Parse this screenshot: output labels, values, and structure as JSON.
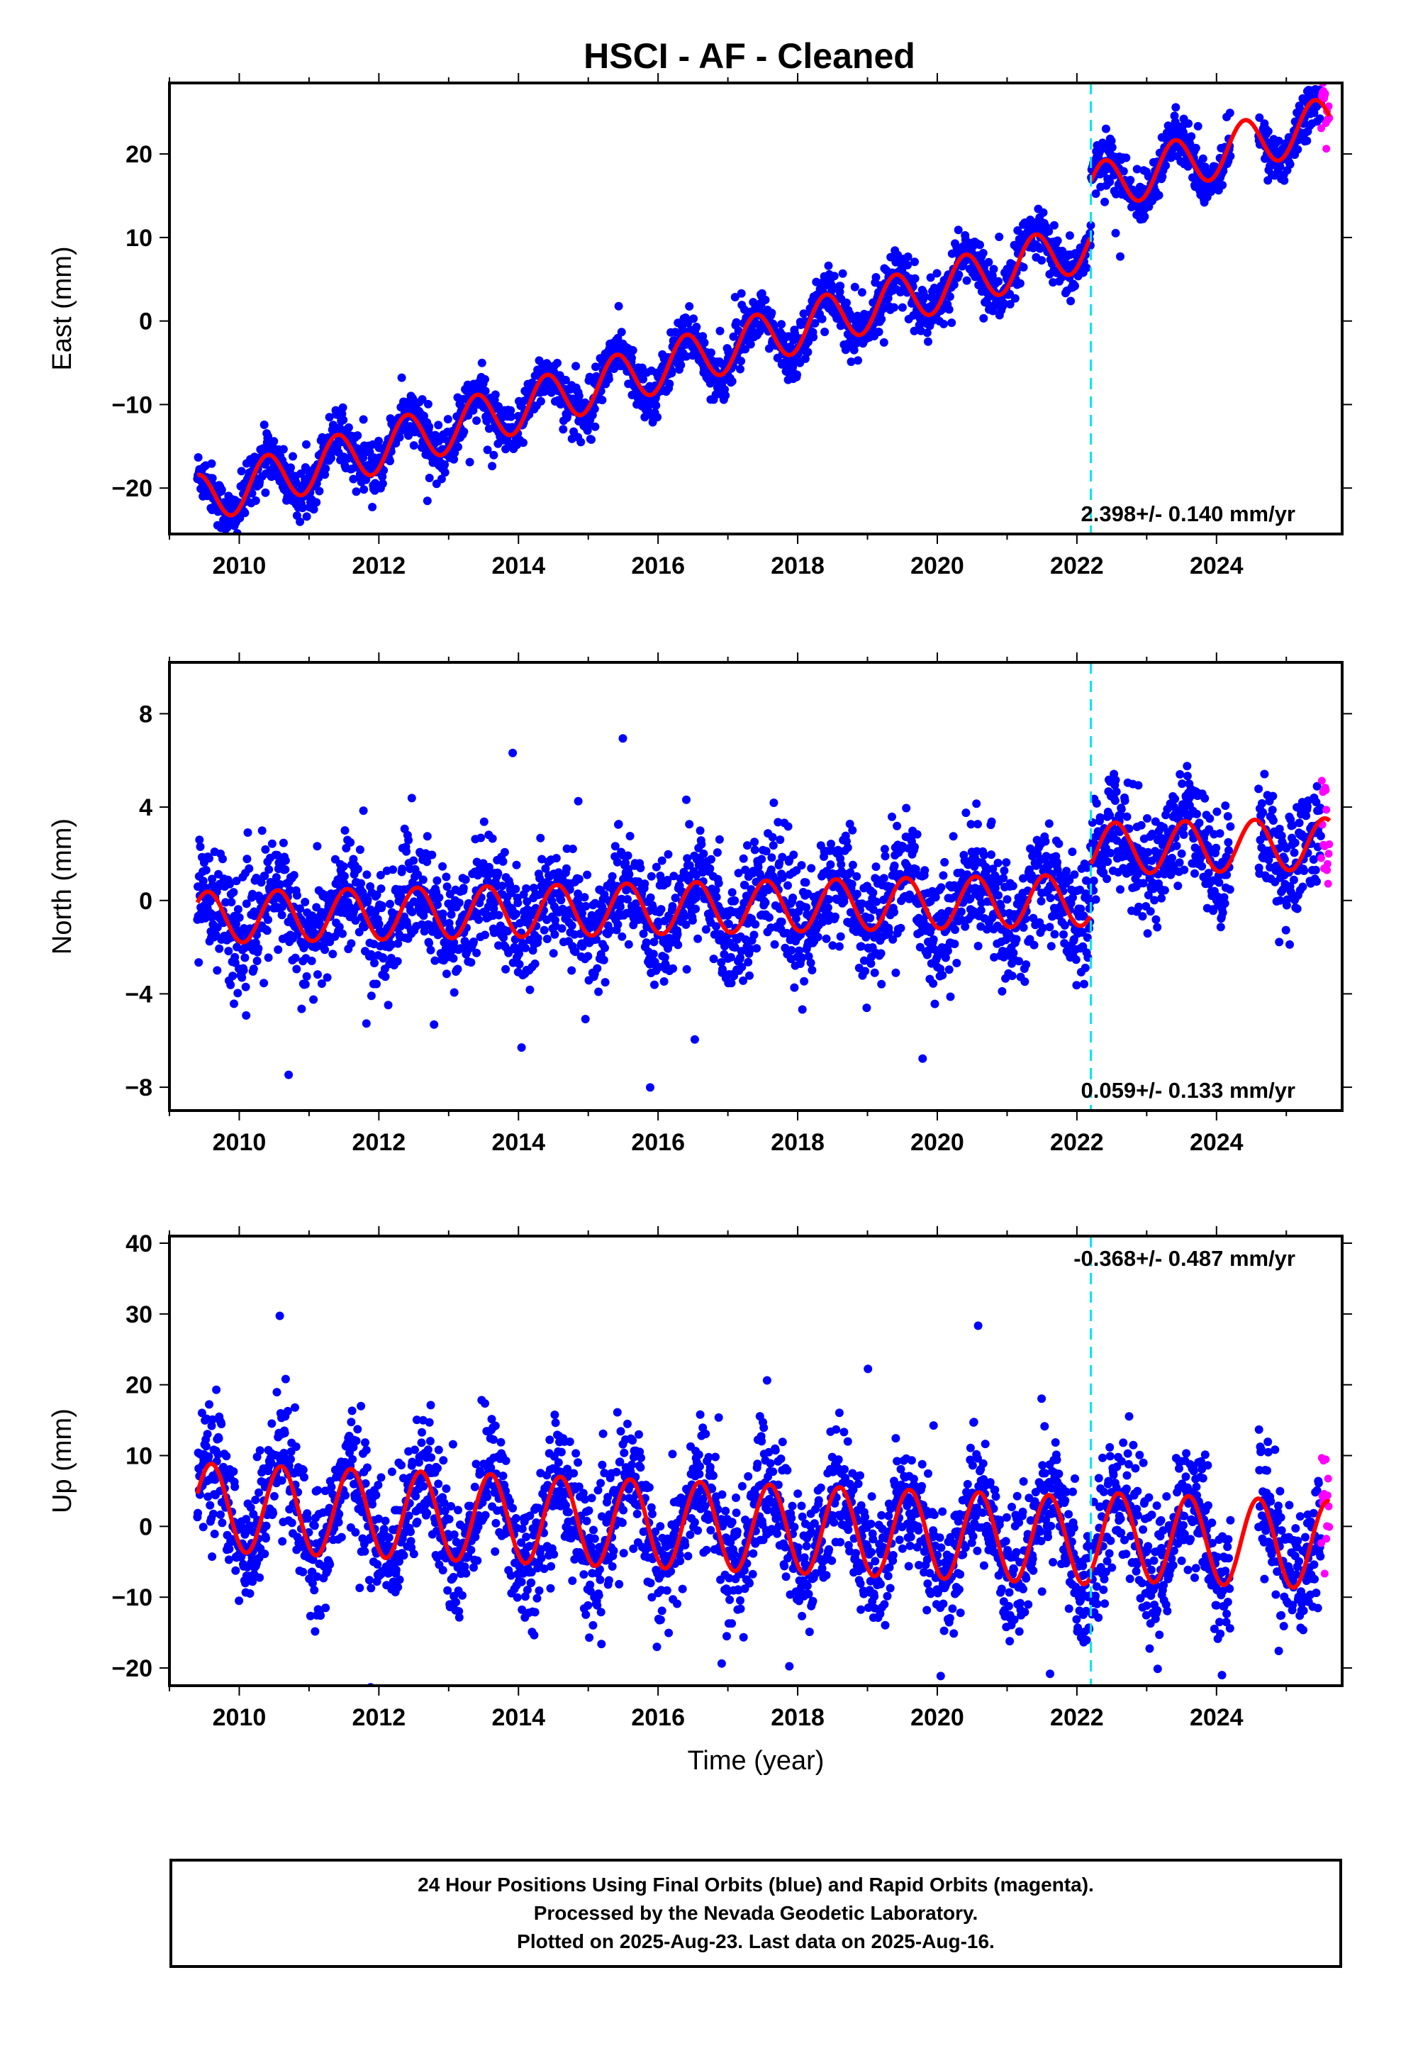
{
  "title": "HSCI  - AF - Cleaned",
  "chart_data": [
    {
      "type": "scatter",
      "panel": "east",
      "ylabel": "East (mm)",
      "xlabel": "",
      "xlim": [
        2009.0,
        2025.8
      ],
      "ylim": [
        -25.5,
        28.5
      ],
      "yticks": [
        -20,
        -10,
        0,
        10,
        20
      ],
      "xticks": [
        2010,
        2012,
        2014,
        2016,
        2018,
        2020,
        2022,
        2024
      ],
      "x_tick_labels": [
        "2010",
        "2012",
        "2014",
        "2016",
        "2018",
        "2020",
        "2022",
        "2024"
      ],
      "rate_label": "2.398+/- 0.140 mm/yr",
      "rate_label_position": "bottom-right",
      "equipment_change_year": 2022.2,
      "data_start": 2009.4,
      "data_end": 2025.62,
      "rapid_start": 2025.5,
      "series": [
        {
          "name": "Final Orbits",
          "color": "#0000ff",
          "trend_at_2010": -20.0,
          "rate": 2.398,
          "annual_amplitude": 3.0,
          "phase_peak_fraction": 0.4,
          "noise_sd": 1.5,
          "offset_after_break": 6.5
        },
        {
          "name": "Rapid Orbits",
          "color": "#ff00ff"
        },
        {
          "name": "Model",
          "color": "#ff0000"
        }
      ],
      "gaps": [
        [
          2024.2,
          2024.6
        ]
      ]
    },
    {
      "type": "scatter",
      "panel": "north",
      "ylabel": "North (mm)",
      "xlabel": "",
      "xlim": [
        2009.0,
        2025.8
      ],
      "ylim": [
        -9.0,
        10.2
      ],
      "yticks": [
        -8,
        -4,
        0,
        4,
        8
      ],
      "xticks": [
        2010,
        2012,
        2014,
        2016,
        2018,
        2020,
        2022,
        2024
      ],
      "x_tick_labels": [
        "2010",
        "2012",
        "2014",
        "2016",
        "2018",
        "2020",
        "2022",
        "2024"
      ],
      "rate_label": "0.059+/- 0.133 mm/yr",
      "rate_label_position": "bottom-right",
      "equipment_change_year": 2022.2,
      "data_start": 2009.4,
      "data_end": 2025.62,
      "rapid_start": 2025.5,
      "series": [
        {
          "name": "Final Orbits",
          "color": "#0000ff",
          "trend_at_2010": -0.7,
          "rate": 0.059,
          "annual_amplitude": 1.1,
          "phase_peak_fraction": 0.55,
          "noise_sd": 1.2,
          "offset_after_break": 2.2
        },
        {
          "name": "Rapid Orbits",
          "color": "#ff00ff"
        },
        {
          "name": "Model",
          "color": "#ff0000"
        }
      ],
      "gaps": [
        [
          2024.2,
          2024.6
        ]
      ]
    },
    {
      "type": "scatter",
      "panel": "up",
      "ylabel": "Up (mm)",
      "xlabel": "Time (year)",
      "xlim": [
        2009.0,
        2025.8
      ],
      "ylim": [
        -22.5,
        41.0
      ],
      "yticks": [
        -20,
        -10,
        0,
        10,
        20,
        30,
        40
      ],
      "xticks": [
        2010,
        2012,
        2014,
        2016,
        2018,
        2020,
        2022,
        2024
      ],
      "x_tick_labels": [
        "2010",
        "2012",
        "2014",
        "2016",
        "2018",
        "2020",
        "2022",
        "2024"
      ],
      "rate_label": "-0.368+/- 0.487 mm/yr",
      "rate_label_position": "top-right",
      "equipment_change_year": 2022.2,
      "data_start": 2009.4,
      "data_end": 2025.62,
      "rapid_start": 2025.5,
      "series": [
        {
          "name": "Final Orbits",
          "color": "#0000ff",
          "trend_at_2010": 2.5,
          "rate": -0.368,
          "annual_amplitude": 6.2,
          "phase_peak_fraction": 0.6,
          "noise_sd": 4.5,
          "offset_after_break": 0.6
        },
        {
          "name": "Rapid Orbits",
          "color": "#ff00ff"
        },
        {
          "name": "Model",
          "color": "#ff0000"
        }
      ],
      "gaps": [
        [
          2024.2,
          2024.6
        ]
      ]
    }
  ],
  "caption": {
    "line1": "24 Hour Positions Using Final Orbits (blue) and Rapid Orbits (magenta).",
    "line2": "Processed by the Nevada Geodetic Laboratory.",
    "line3": "Plotted on 2025-Aug-23. Last data on 2025-Aug-16."
  },
  "colors": {
    "final_orbits": "#0000ff",
    "rapid_orbits": "#ff00ff",
    "model": "#ff0000",
    "equipment_change": "#00e5ee",
    "axes": "#000000"
  }
}
